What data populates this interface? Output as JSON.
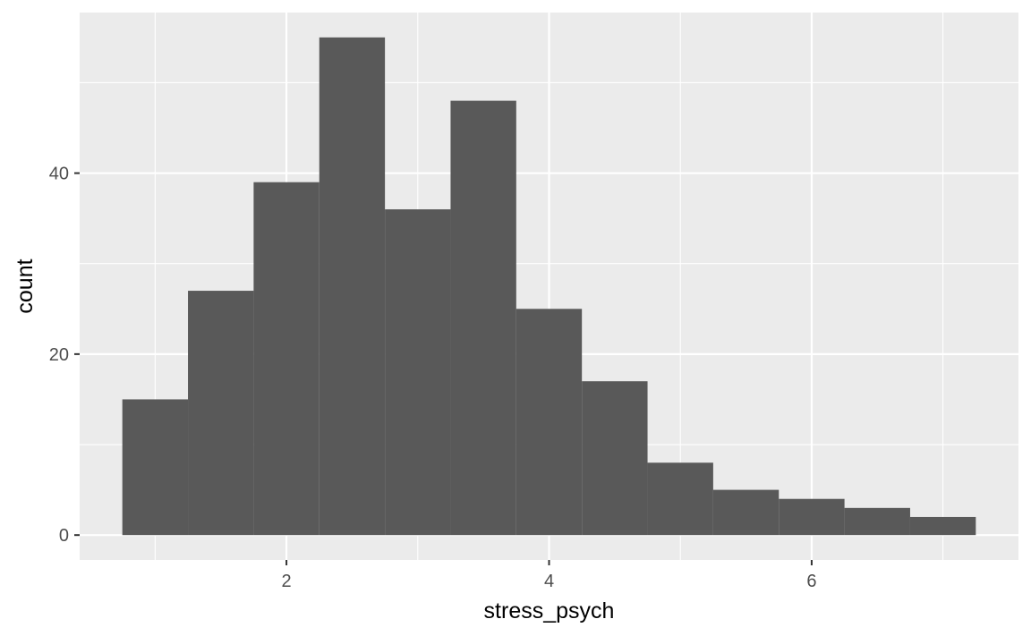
{
  "chart_data": {
    "type": "bar",
    "subtype": "histogram",
    "title": "",
    "xlabel": "stress_psych",
    "ylabel": "count",
    "bin_width": 0.5,
    "bins": [
      {
        "x_start": 0.75,
        "x_end": 1.25,
        "count": 15
      },
      {
        "x_start": 1.25,
        "x_end": 1.75,
        "count": 27
      },
      {
        "x_start": 1.75,
        "x_end": 2.25,
        "count": 39
      },
      {
        "x_start": 2.25,
        "x_end": 2.75,
        "count": 55
      },
      {
        "x_start": 2.75,
        "x_end": 3.25,
        "count": 36
      },
      {
        "x_start": 3.25,
        "x_end": 3.75,
        "count": 48
      },
      {
        "x_start": 3.75,
        "x_end": 4.25,
        "count": 25
      },
      {
        "x_start": 4.25,
        "x_end": 4.75,
        "count": 17
      },
      {
        "x_start": 4.75,
        "x_end": 5.25,
        "count": 8
      },
      {
        "x_start": 5.25,
        "x_end": 5.75,
        "count": 5
      },
      {
        "x_start": 5.75,
        "x_end": 6.25,
        "count": 4
      },
      {
        "x_start": 6.25,
        "x_end": 6.75,
        "count": 3
      },
      {
        "x_start": 6.75,
        "x_end": 7.25,
        "count": 2
      }
    ],
    "xlim": [
      0.425,
      7.575
    ],
    "ylim": [
      -2.75,
      57.75
    ],
    "x_major_ticks": [
      2,
      4,
      6
    ],
    "x_minor_ticks": [
      1,
      3,
      5,
      7
    ],
    "y_major_ticks": [
      0,
      20,
      40
    ],
    "y_minor_ticks": [
      10,
      30,
      50
    ],
    "grid": true,
    "legend": "none",
    "colors": {
      "panel_background": "#ebebeb",
      "grid": "#ffffff",
      "bar_fill": "#595959",
      "tick_text": "#4d4d4d",
      "tick_mark": "#333333"
    }
  }
}
